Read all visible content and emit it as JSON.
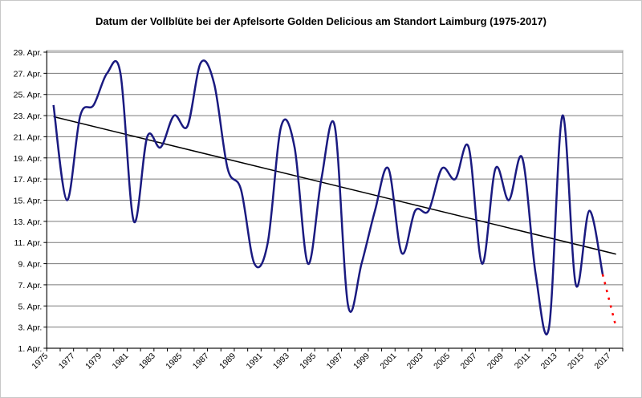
{
  "chart_data": {
    "type": "line",
    "title": "Datum der Vollblüte bei der Apfelsorte Golden Delicious am Standort Laimburg (1975-2017)",
    "xlabel": "",
    "ylabel": "",
    "x": [
      1975,
      1976,
      1977,
      1978,
      1979,
      1980,
      1981,
      1982,
      1983,
      1984,
      1985,
      1986,
      1987,
      1988,
      1989,
      1990,
      1991,
      1992,
      1993,
      1994,
      1995,
      1996,
      1997,
      1998,
      1999,
      2000,
      2001,
      2002,
      2003,
      2004,
      2005,
      2006,
      2007,
      2008,
      2009,
      2010,
      2011,
      2012,
      2013,
      2014,
      2015,
      2016
    ],
    "x_tick_labels": [
      "1975",
      "1977",
      "1979",
      "1981",
      "1983",
      "1985",
      "1987",
      "1989",
      "1991",
      "1993",
      "1995",
      "1997",
      "1999",
      "2001",
      "2003",
      "2005",
      "2007",
      "2009",
      "2011",
      "2013",
      "2015",
      "2017"
    ],
    "y_unit": "day of April",
    "ylim": [
      1,
      29
    ],
    "y_tick_labels": [
      "1. Apr.",
      "3. Apr.",
      "5. Apr.",
      "7. Apr.",
      "9. Apr.",
      "11. Apr.",
      "13. Apr.",
      "15. Apr.",
      "17. Apr.",
      "19. Apr.",
      "21. Apr.",
      "23. Apr.",
      "25. Apr.",
      "27. Apr.",
      "29. Apr."
    ],
    "grid": true,
    "series": [
      {
        "style": "smoothed line",
        "color": "#1a1a80",
        "values": [
          24,
          15,
          23,
          24,
          27,
          27,
          13,
          21,
          20,
          23,
          22,
          28,
          26,
          18,
          16,
          9,
          11,
          22,
          20,
          9,
          17,
          22,
          5,
          9,
          14,
          18,
          10,
          14,
          14,
          18,
          17,
          20,
          9,
          18,
          15,
          19,
          8,
          3,
          23,
          7,
          14,
          8
        ]
      },
      {
        "style": "dotted projection",
        "color": "#ff0000",
        "x": [
          2016,
          2017
        ],
        "values": [
          8,
          3
        ]
      },
      {
        "style": "linear trend",
        "color": "#000000",
        "x": [
          1975,
          2017
        ],
        "values": [
          22.9,
          9.9
        ]
      }
    ]
  }
}
